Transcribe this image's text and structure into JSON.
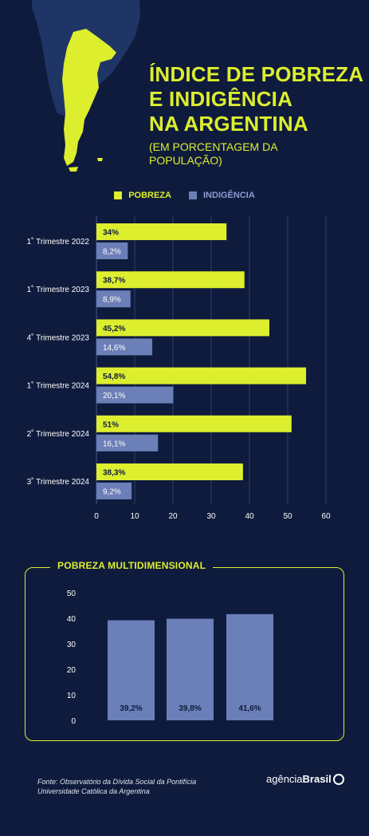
{
  "header": {
    "title_lines": [
      "ÍNDICE DE POBREZA",
      "E INDIGÊNCIA",
      "NA ARGENTINA"
    ],
    "subtitle": "(EM PORCENTAGEM DA POPULAÇÃO)"
  },
  "colors": {
    "background": "#0f1b3d",
    "accent": "#dcee2e",
    "pobreza": "#dcee2e",
    "indigencia": "#6b7fb8",
    "map_land": "#1f3566",
    "map_highlight": "#dcee2e"
  },
  "legend": {
    "pobreza": "POBREZA",
    "indigencia": "INDIGÊNCIA"
  },
  "panel": {
    "title": "POBREZA MULTIDIMENSIONAL"
  },
  "footer": {
    "source": "Fonte: Observatório da Dívida Social da Pontifícia Universidade Católica da Argentina",
    "logo_regular": "agência",
    "logo_bold": "Brasil"
  },
  "chart_data": [
    {
      "type": "bar",
      "orientation": "horizontal",
      "categories": [
        "1˚ Trimestre 2022",
        "1˚ Trimestre 2023",
        "4˚ Trimestre 2023",
        "1˚ Trimestre 2024",
        "2˚ Trimestre 2024",
        "3˚ Trimestre 2024"
      ],
      "series": [
        {
          "name": "POBREZA",
          "values": [
            34,
            38.7,
            45.2,
            54.8,
            51,
            38.3
          ],
          "labels": [
            "34%",
            "38,7%",
            "45,2%",
            "54,8%",
            "51%",
            "38,3%"
          ]
        },
        {
          "name": "INDIGÊNCIA",
          "values": [
            8.2,
            8.9,
            14.6,
            20.1,
            16.1,
            9.2
          ],
          "labels": [
            "8,2%",
            "8,9%",
            "14,6%",
            "20,1%",
            "16,1%",
            "9,2%"
          ]
        }
      ],
      "xlim": [
        0,
        60
      ],
      "xticks": [
        "0",
        "10",
        "20",
        "30",
        "40",
        "50",
        "60"
      ],
      "grid": true,
      "legend": "top"
    },
    {
      "type": "bar",
      "orientation": "vertical",
      "categories": [
        "",
        "",
        ""
      ],
      "values": [
        39.2,
        39.8,
        41.6
      ],
      "labels": [
        "39,2%",
        "39,8%",
        "41,6%"
      ],
      "ylim": [
        0,
        50
      ],
      "yticks": [
        "0",
        "10",
        "20",
        "30",
        "40",
        "50"
      ],
      "title": "POBREZA MULTIDIMENSIONAL",
      "grid": false
    }
  ]
}
